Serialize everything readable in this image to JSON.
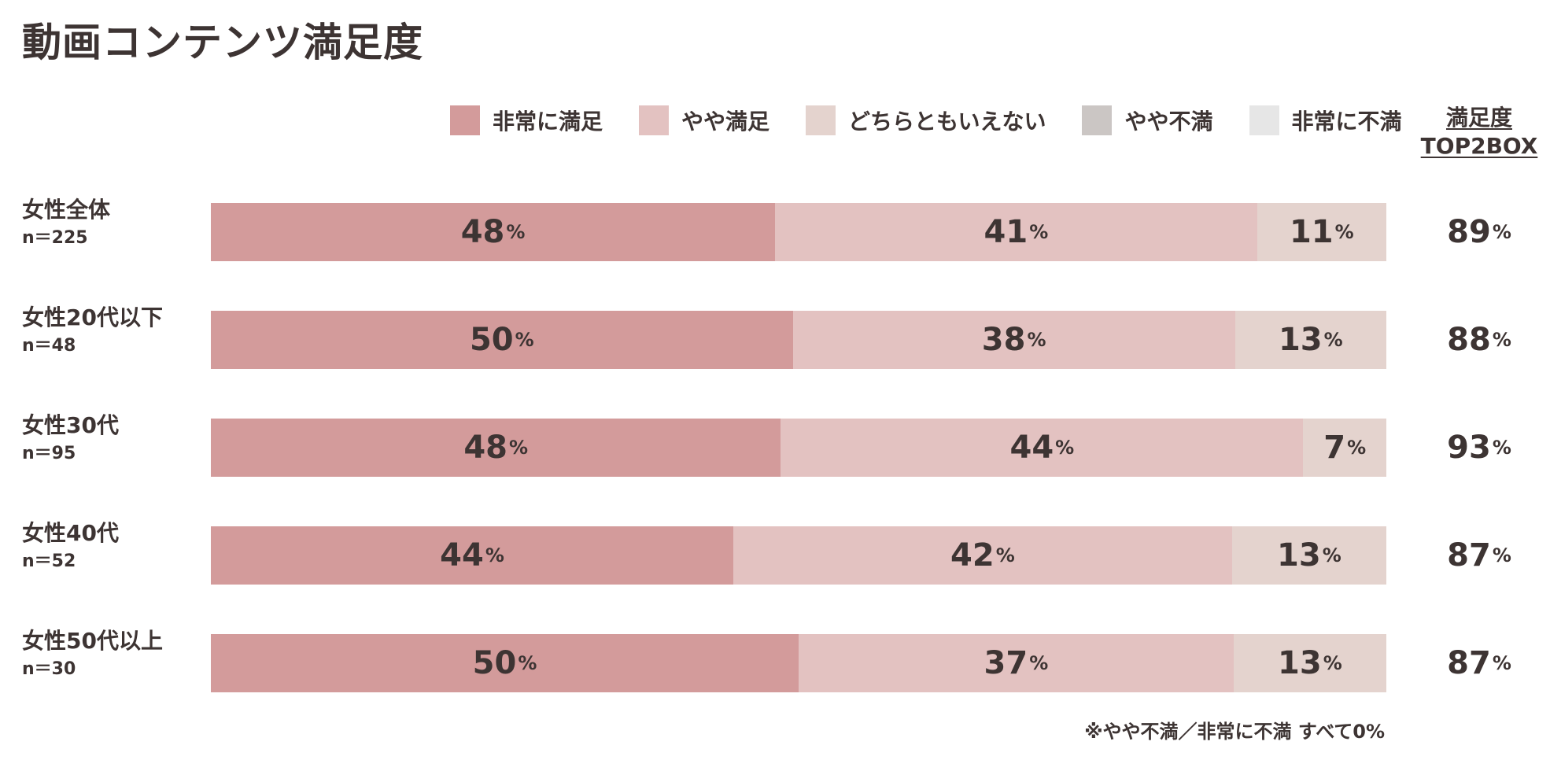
{
  "title": "動画コンテンツ満足度",
  "legend": [
    {
      "label": "非常に満足",
      "color": "#d39b9b"
    },
    {
      "label": "やや満足",
      "color": "#e3c2c1"
    },
    {
      "label": "どちらともいえない",
      "color": "#e4d3ce"
    },
    {
      "label": "やや不満",
      "color": "#cbc6c4"
    },
    {
      "label": "非常に不満",
      "color": "#e6e6e6"
    }
  ],
  "top2_header": {
    "line1": "満足度",
    "line2": "TOP2BOX"
  },
  "percent_sign": "%",
  "footnote": "※やや不満／非常に不満 すべて0%",
  "chart_data": {
    "type": "bar",
    "orientation": "horizontal",
    "stacked": true,
    "title": "動画コンテンツ満足度",
    "categories": [
      "女性全体",
      "女性20代以下",
      "女性30代",
      "女性40代",
      "女性50代以上"
    ],
    "sample_sizes": [
      "n＝225",
      "n＝48",
      "n＝95",
      "n＝52",
      "n＝30"
    ],
    "series": [
      {
        "name": "非常に満足",
        "values": [
          48,
          50,
          48,
          44,
          50
        ]
      },
      {
        "name": "やや満足",
        "values": [
          41,
          38,
          44,
          42,
          37
        ]
      },
      {
        "name": "どちらともいえない",
        "values": [
          11,
          13,
          7,
          13,
          13
        ]
      },
      {
        "name": "やや不満",
        "values": [
          0,
          0,
          0,
          0,
          0
        ]
      },
      {
        "name": "非常に不満",
        "values": [
          0,
          0,
          0,
          0,
          0
        ]
      }
    ],
    "top2box": [
      89,
      88,
      93,
      87,
      87
    ],
    "unit": "%",
    "legend_position": "top",
    "grid": false
  }
}
